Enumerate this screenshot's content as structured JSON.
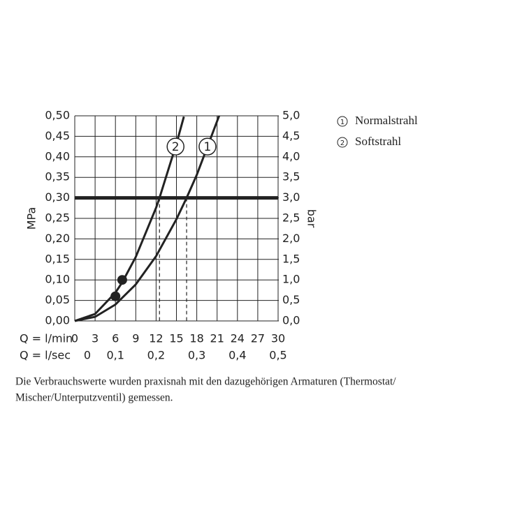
{
  "chart_data": {
    "type": "line",
    "xlabel": "Q = l/min",
    "x2label": "Q = l/sec",
    "ylabel": "MPa",
    "y2label": "bar",
    "xlim": [
      0,
      30
    ],
    "xticks": [
      0,
      3,
      6,
      9,
      12,
      15,
      18,
      21,
      24,
      27,
      30
    ],
    "x2lim": [
      0,
      0.5
    ],
    "x2ticks": [
      {
        "value": 0,
        "label": "0"
      },
      {
        "value": 0.1,
        "label": "0,1"
      },
      {
        "value": 0.2,
        "label": "0,2"
      },
      {
        "value": 0.3,
        "label": "0,3"
      },
      {
        "value": 0.4,
        "label": "0,4"
      },
      {
        "value": 0.5,
        "label": "0,5"
      }
    ],
    "ylim": [
      0,
      0.5
    ],
    "yticks": [
      {
        "value": 0,
        "label": "0,00"
      },
      {
        "value": 0.05,
        "label": "0,05"
      },
      {
        "value": 0.1,
        "label": "0,10"
      },
      {
        "value": 0.15,
        "label": "0,15"
      },
      {
        "value": 0.2,
        "label": "0,20"
      },
      {
        "value": 0.25,
        "label": "0,25"
      },
      {
        "value": 0.3,
        "label": "0,30"
      },
      {
        "value": 0.35,
        "label": "0,35"
      },
      {
        "value": 0.4,
        "label": "0,40"
      },
      {
        "value": 0.45,
        "label": "0,45"
      },
      {
        "value": 0.5,
        "label": "0,50"
      }
    ],
    "y2lim": [
      0,
      5
    ],
    "y2ticks": [
      {
        "value": 0,
        "label": "0,0"
      },
      {
        "value": 0.5,
        "label": "0,5"
      },
      {
        "value": 1,
        "label": "1,0"
      },
      {
        "value": 1.5,
        "label": "1,5"
      },
      {
        "value": 2,
        "label": "2,0"
      },
      {
        "value": 2.5,
        "label": "2,5"
      },
      {
        "value": 3,
        "label": "3,0"
      },
      {
        "value": 3.5,
        "label": "3,5"
      },
      {
        "value": 4,
        "label": "4,0"
      },
      {
        "value": 4.5,
        "label": "4,5"
      },
      {
        "value": 5,
        "label": "5,0"
      }
    ],
    "grid": true,
    "reference_line": 0.3,
    "color": "#222",
    "series": [
      {
        "name": "Normalstrahl",
        "label": "1",
        "x": [
          0,
          3,
          6,
          9,
          12,
          15,
          16.5,
          18,
          21.3
        ],
        "values": [
          0,
          0.01,
          0.04,
          0.089,
          0.158,
          0.248,
          0.3,
          0.356,
          0.5
        ],
        "marker_x": 6,
        "marker_y": 0.06,
        "drop_x": 16.5
      },
      {
        "name": "Softstrahl",
        "label": "2",
        "x": [
          0,
          3,
          6,
          7,
          9,
          12,
          12.5,
          15,
          16.1
        ],
        "values": [
          0,
          0.017,
          0.069,
          0.094,
          0.156,
          0.276,
          0.3,
          0.432,
          0.498
        ],
        "marker_x": 7,
        "marker_y": 0.1,
        "drop_x": 12.5
      }
    ],
    "note": [
      "Die Verbrauchswerte wurden praxisnah mit den dazugehörigen Armaturen (Thermostat/",
      "Mischer/Unterputzventil) gemessen."
    ]
  }
}
